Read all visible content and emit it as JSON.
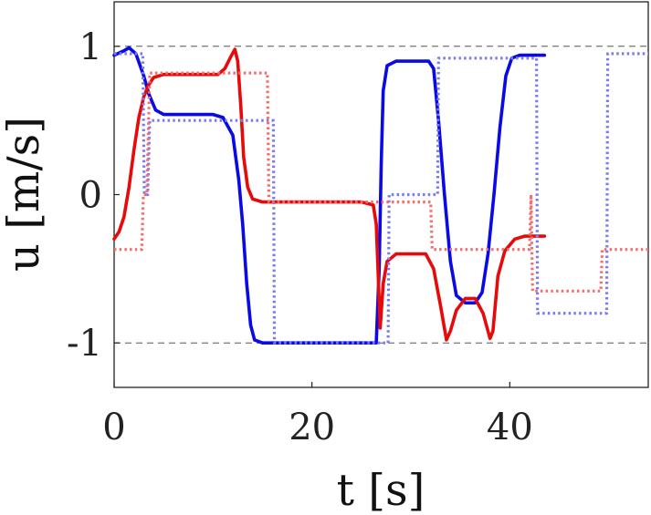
{
  "chart_data": {
    "type": "line",
    "xlabel": "t [s]",
    "ylabel": "u [m/s]",
    "xlim": [
      0,
      54
    ],
    "ylim": [
      -1.3,
      1.3
    ],
    "x_ticks": [
      {
        "value": 0,
        "label": "0"
      },
      {
        "value": 20,
        "label": "20"
      },
      {
        "value": 40,
        "label": "40"
      }
    ],
    "y_ticks": [
      {
        "value": 1,
        "label": "1"
      },
      {
        "value": 0,
        "label": "0"
      },
      {
        "value": -1,
        "label": "-1"
      }
    ],
    "reference_lines": [
      {
        "y": 1,
        "style": "dashed",
        "color": "#555555"
      },
      {
        "y": -1,
        "style": "dashed",
        "color": "#555555"
      }
    ],
    "grid": false,
    "legend": "none",
    "series": [
      {
        "color": "#0a0ae6",
        "style": "solid",
        "points": [
          [
            0,
            0.94
          ],
          [
            1,
            0.97
          ],
          [
            1.5,
            0.99
          ],
          [
            2.2,
            0.95
          ],
          [
            3,
            0.8
          ],
          [
            3.5,
            0.68
          ],
          [
            4.2,
            0.57
          ],
          [
            5,
            0.54
          ],
          [
            8,
            0.54
          ],
          [
            10,
            0.54
          ],
          [
            11,
            0.52
          ],
          [
            12,
            0.4
          ],
          [
            12.6,
            0.1
          ],
          [
            13,
            -0.2
          ],
          [
            13.4,
            -0.6
          ],
          [
            13.8,
            -0.88
          ],
          [
            14.2,
            -0.98
          ],
          [
            15,
            -1.0
          ],
          [
            20,
            -1.0
          ],
          [
            25,
            -1.0
          ],
          [
            26.5,
            -1.0
          ],
          [
            26.8,
            -0.5
          ],
          [
            27.0,
            0.2
          ],
          [
            27.2,
            0.7
          ],
          [
            27.6,
            0.87
          ],
          [
            28.5,
            0.9
          ],
          [
            30,
            0.9
          ],
          [
            31.8,
            0.9
          ],
          [
            32.3,
            0.85
          ],
          [
            32.8,
            0.5
          ],
          [
            33.4,
            0.0
          ],
          [
            34.0,
            -0.45
          ],
          [
            34.6,
            -0.68
          ],
          [
            35.5,
            -0.73
          ],
          [
            36.5,
            -0.73
          ],
          [
            37.2,
            -0.66
          ],
          [
            37.8,
            -0.4
          ],
          [
            38.4,
            0.0
          ],
          [
            39.0,
            0.45
          ],
          [
            39.6,
            0.8
          ],
          [
            40.2,
            0.92
          ],
          [
            41,
            0.94
          ],
          [
            43.5,
            0.94
          ]
        ]
      },
      {
        "color": "#e60a0a",
        "style": "solid",
        "points": [
          [
            0,
            -0.3
          ],
          [
            0.5,
            -0.25
          ],
          [
            1,
            -0.15
          ],
          [
            1.5,
            0.05
          ],
          [
            2,
            0.3
          ],
          [
            2.5,
            0.52
          ],
          [
            3,
            0.66
          ],
          [
            3.5,
            0.74
          ],
          [
            4,
            0.79
          ],
          [
            5,
            0.81
          ],
          [
            8,
            0.81
          ],
          [
            10.5,
            0.81
          ],
          [
            11.2,
            0.85
          ],
          [
            11.8,
            0.93
          ],
          [
            12.2,
            0.98
          ],
          [
            12.5,
            0.9
          ],
          [
            12.8,
            0.6
          ],
          [
            13.1,
            0.25
          ],
          [
            13.5,
            0.05
          ],
          [
            14,
            -0.03
          ],
          [
            15,
            -0.05
          ],
          [
            20,
            -0.05
          ],
          [
            25,
            -0.05
          ],
          [
            26.2,
            -0.07
          ],
          [
            26.5,
            -0.2
          ],
          [
            26.9,
            -0.9
          ],
          [
            27.2,
            -0.6
          ],
          [
            27.6,
            -0.45
          ],
          [
            28.5,
            -0.4
          ],
          [
            31.5,
            -0.4
          ],
          [
            32.3,
            -0.5
          ],
          [
            33,
            -0.75
          ],
          [
            33.6,
            -0.98
          ],
          [
            34.0,
            -0.92
          ],
          [
            34.6,
            -0.78
          ],
          [
            35.5,
            -0.7
          ],
          [
            36.5,
            -0.7
          ],
          [
            37.3,
            -0.8
          ],
          [
            38.0,
            -0.97
          ],
          [
            38.3,
            -0.92
          ],
          [
            38.8,
            -0.55
          ],
          [
            39.5,
            -0.38
          ],
          [
            40.5,
            -0.3
          ],
          [
            41.5,
            -0.28
          ],
          [
            43.5,
            -0.28
          ]
        ]
      },
      {
        "color": "#7b7bef",
        "style": "dotted",
        "points": [
          [
            0,
            0.95
          ],
          [
            2.5,
            0.95
          ],
          [
            2.9,
            0.95
          ],
          [
            3.05,
            0.0
          ],
          [
            3.4,
            0.0
          ],
          [
            3.6,
            0.5
          ],
          [
            15.6,
            0.5
          ],
          [
            16.1,
            0.5
          ],
          [
            16.2,
            -1.0
          ],
          [
            27.5,
            -1.0
          ],
          [
            27.7,
            -1.0
          ],
          [
            27.8,
            0.0
          ],
          [
            32.5,
            0.0
          ],
          [
            32.7,
            0.0
          ],
          [
            32.8,
            0.92
          ],
          [
            42.5,
            0.92
          ],
          [
            42.7,
            0.92
          ],
          [
            42.8,
            -0.8
          ],
          [
            49.6,
            -0.8
          ],
          [
            49.8,
            -0.8
          ],
          [
            49.9,
            0.95
          ],
          [
            54,
            0.95
          ]
        ]
      },
      {
        "color": "#f26e6e",
        "style": "dotted",
        "points": [
          [
            0,
            -0.37
          ],
          [
            2.8,
            -0.37
          ],
          [
            2.95,
            0.0
          ],
          [
            3.3,
            0.0
          ],
          [
            3.6,
            0.82
          ],
          [
            15.5,
            0.82
          ],
          [
            15.65,
            -0.05
          ],
          [
            26.5,
            -0.05
          ],
          [
            32.0,
            -0.05
          ],
          [
            32.15,
            -0.37
          ],
          [
            42.0,
            -0.37
          ],
          [
            42.15,
            0.0
          ],
          [
            42.3,
            -0.65
          ],
          [
            49.2,
            -0.65
          ],
          [
            49.35,
            -0.37
          ],
          [
            54,
            -0.37
          ]
        ]
      }
    ]
  }
}
